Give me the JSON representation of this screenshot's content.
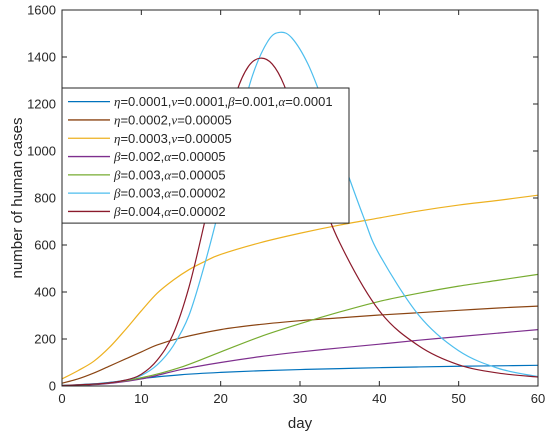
{
  "chart_data": {
    "type": "line",
    "xlabel": "day",
    "ylabel": "number of human cases",
    "xlim": [
      0,
      60
    ],
    "ylim": [
      0,
      1600
    ],
    "xticks": [
      0,
      10,
      20,
      30,
      40,
      50,
      60
    ],
    "yticks": [
      0,
      200,
      400,
      600,
      800,
      1000,
      1200,
      1400,
      1600
    ],
    "grid": false,
    "legend_position": "upper-left",
    "series": [
      {
        "legend": [
          {
            "sym": "η",
            "txt": "=0.0001,"
          },
          {
            "sym": "ν",
            "txt": "=0.0001,"
          },
          {
            "sym": "β",
            "txt": "=0.001,"
          },
          {
            "sym": "α",
            "txt": "=0.0001"
          }
        ],
        "color": "#0072BD",
        "x": [
          0,
          5,
          10,
          15,
          20,
          25,
          30,
          35,
          40,
          45,
          50,
          55,
          60
        ],
        "y": [
          2,
          12,
          32,
          48,
          58,
          65,
          70,
          74,
          78,
          81,
          84,
          86,
          88
        ]
      },
      {
        "legend": [
          {
            "sym": "η",
            "txt": "=0.0002,"
          },
          {
            "sym": "ν",
            "txt": "=0.00005"
          }
        ],
        "color": "#8B4513",
        "x": [
          0,
          2,
          4,
          6,
          8,
          10,
          12,
          15,
          20,
          25,
          30,
          35,
          40,
          45,
          50,
          55,
          60
        ],
        "y": [
          12,
          30,
          55,
          85,
          115,
          145,
          175,
          205,
          240,
          262,
          278,
          290,
          302,
          312,
          322,
          332,
          340
        ]
      },
      {
        "legend": [
          {
            "sym": "η",
            "txt": "=0.0003,"
          },
          {
            "sym": "ν",
            "txt": "=0.00005"
          }
        ],
        "color": "#EDB120",
        "x": [
          0,
          2,
          4,
          6,
          8,
          10,
          12,
          14,
          16,
          18,
          20,
          25,
          30,
          35,
          40,
          45,
          50,
          55,
          60
        ],
        "y": [
          30,
          65,
          105,
          165,
          240,
          320,
          395,
          450,
          495,
          530,
          560,
          610,
          650,
          685,
          715,
          745,
          770,
          790,
          812
        ]
      },
      {
        "legend": [
          {
            "sym": "β",
            "txt": "=0.002,"
          },
          {
            "sym": "α",
            "txt": "=0.00005"
          }
        ],
        "color": "#7E2F8E",
        "x": [
          0,
          5,
          10,
          15,
          20,
          25,
          30,
          35,
          40,
          45,
          50,
          55,
          60
        ],
        "y": [
          2,
          8,
          30,
          70,
          100,
          125,
          145,
          162,
          178,
          195,
          210,
          225,
          240
        ]
      },
      {
        "legend": [
          {
            "sym": "β",
            "txt": "=0.003,"
          },
          {
            "sym": "α",
            "txt": "=0.00005"
          }
        ],
        "color": "#77AC30",
        "x": [
          0,
          5,
          10,
          15,
          20,
          25,
          30,
          35,
          40,
          45,
          50,
          55,
          60
        ],
        "y": [
          2,
          10,
          35,
          80,
          145,
          210,
          265,
          315,
          360,
          395,
          425,
          450,
          475
        ]
      },
      {
        "legend": [
          {
            "sym": "β",
            "txt": "=0.003,"
          },
          {
            "sym": "α",
            "txt": "=0.00002"
          }
        ],
        "color": "#4DBEEE",
        "x": [
          0,
          5,
          8,
          10,
          12,
          14,
          16,
          18,
          20,
          22,
          24,
          26,
          27.5,
          29,
          31,
          33,
          35,
          38,
          40,
          45,
          50,
          55,
          60
        ],
        "y": [
          2,
          10,
          25,
          45,
          90,
          170,
          300,
          520,
          780,
          1070,
          1320,
          1470,
          1505,
          1480,
          1370,
          1200,
          1000,
          720,
          560,
          300,
          150,
          75,
          40
        ]
      },
      {
        "legend": [
          {
            "sym": "β",
            "txt": "=0.004,"
          },
          {
            "sym": "α",
            "txt": "=0.00002"
          }
        ],
        "color": "#8B1A2B",
        "x": [
          0,
          5,
          8,
          10,
          12,
          14,
          16,
          18,
          20,
          22,
          23.5,
          25,
          26.5,
          28,
          30,
          32,
          35,
          40,
          45,
          50,
          55,
          60
        ],
        "y": [
          2,
          10,
          25,
          50,
          110,
          220,
          420,
          700,
          1000,
          1250,
          1360,
          1395,
          1370,
          1280,
          1080,
          870,
          610,
          320,
          170,
          90,
          55,
          38
        ]
      }
    ]
  }
}
